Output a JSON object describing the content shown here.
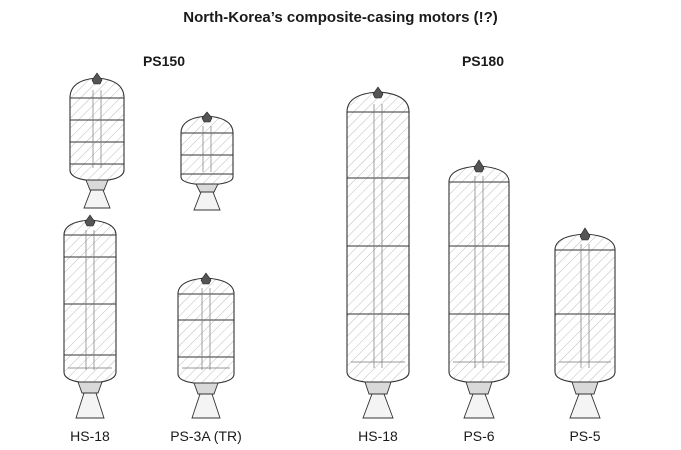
{
  "title": "North-Korea’s composite-casing motors (!?)",
  "groups": [
    {
      "label": "PS150"
    },
    {
      "label": "PS180"
    }
  ],
  "motors": [
    {
      "label": ""
    },
    {
      "label": ""
    },
    {
      "label": "HS-18"
    },
    {
      "label": "PS-3A (TR)"
    },
    {
      "label": "HS-18"
    },
    {
      "label": "PS-6"
    },
    {
      "label": "PS-5"
    }
  ]
}
